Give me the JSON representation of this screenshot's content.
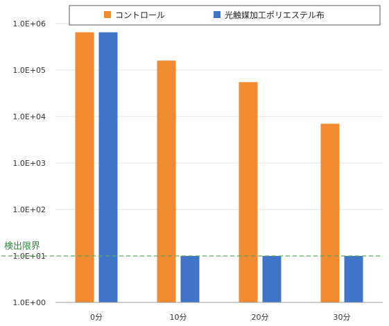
{
  "chart_data": {
    "type": "bar",
    "title": "",
    "xlabel": "",
    "ylabel": "",
    "y_scale": "log",
    "ylim": [
      1,
      1000000
    ],
    "y_ticks": [
      "1.0E+00",
      "1.0E+01",
      "1.0E+02",
      "1.0E+03",
      "1.0E+04",
      "1.0E+05",
      "1.0E+06"
    ],
    "categories": [
      "0分",
      "10分",
      "20分",
      "30分"
    ],
    "series": [
      {
        "name": "コントロール",
        "color": "#f28a30",
        "values": [
          650000,
          160000,
          55000,
          7000
        ]
      },
      {
        "name": "光触媒加工ポリエステル布",
        "color": "#3f74c9",
        "values": [
          650000,
          10,
          10,
          10
        ]
      }
    ],
    "legend_position": "top",
    "grid": true,
    "reference_line": {
      "label": "検出限界",
      "value": 10,
      "color": "#5aa85a"
    }
  }
}
